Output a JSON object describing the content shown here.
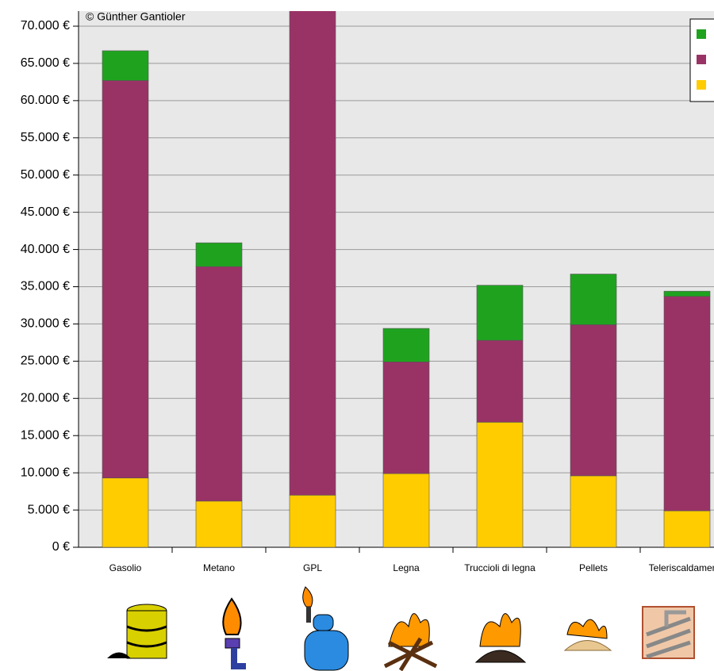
{
  "chart_data": {
    "type": "stacked_bar",
    "annotation": "© Günther Gantioler",
    "categories": [
      "Gasolio",
      "Metano",
      "GPL",
      "Legna",
      "Truccioli di legna",
      "Pellets",
      "Teleriscaldamento"
    ],
    "series": [
      {
        "color": "#ffcc00",
        "values": [
          9300,
          6200,
          7000,
          9900,
          16800,
          9600,
          4900
        ]
      },
      {
        "color": "#993366",
        "values": [
          53400,
          31500,
          66000,
          15000,
          11000,
          20300,
          28800
        ]
      },
      {
        "color": "#1fa31f",
        "values": [
          4000,
          3200,
          null,
          4500,
          7400,
          6800,
          700
        ]
      }
    ],
    "ylim": [
      0,
      72000
    ],
    "yticks": [
      {
        "value": 0,
        "label": "0 €"
      },
      {
        "value": 5000,
        "label": "5.000 €"
      },
      {
        "value": 10000,
        "label": "10.000 €"
      },
      {
        "value": 15000,
        "label": "15.000 €"
      },
      {
        "value": 20000,
        "label": "20.000 €"
      },
      {
        "value": 25000,
        "label": "25.000 €"
      },
      {
        "value": 30000,
        "label": "30.000 €"
      },
      {
        "value": 35000,
        "label": "35.000 €"
      },
      {
        "value": 40000,
        "label": "40.000 €"
      },
      {
        "value": 45000,
        "label": "45.000 €"
      },
      {
        "value": 50000,
        "label": "50.000 €"
      },
      {
        "value": 55000,
        "label": "55.000 €"
      },
      {
        "value": 60000,
        "label": "60.000 €"
      },
      {
        "value": 65000,
        "label": "65.000 €"
      },
      {
        "value": 70000,
        "label": "70.000 €"
      }
    ],
    "grid": true,
    "legend": "upper right"
  }
}
